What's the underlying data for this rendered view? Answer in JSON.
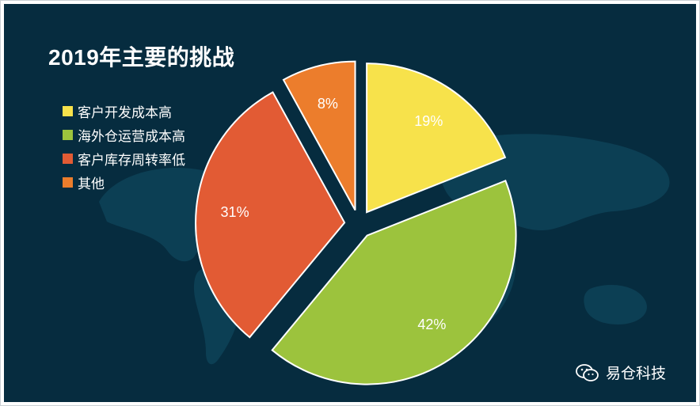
{
  "page": {
    "title": "2019年主要的挑战",
    "watermark": "易仓科技"
  },
  "colors": {
    "background": "#062c3f",
    "map": "#0e4358",
    "slice_border": "#ffffff"
  },
  "legend": {
    "items": [
      {
        "label": "客户开发成本高",
        "color": "#f7e24b"
      },
      {
        "label": "海外仓运营成本高",
        "color": "#9cc33d"
      },
      {
        "label": "客户库存周转率低",
        "color": "#e25b34"
      },
      {
        "label": "其他",
        "color": "#ec7d2c"
      }
    ]
  },
  "chart_data": {
    "type": "pie",
    "title": "2019年主要的挑战",
    "categories": [
      "客户开发成本高",
      "海外仓运营成本高",
      "客户库存周转率低",
      "其他"
    ],
    "values": [
      19,
      42,
      31,
      8
    ],
    "labels": [
      "19%",
      "42%",
      "31%",
      "8%"
    ],
    "colors": [
      "#f7e24b",
      "#9cc33d",
      "#e25b34",
      "#ec7d2c"
    ],
    "exploded": true,
    "legend_position": "left"
  },
  "icons": {
    "watermark_icon": "wechat-icon"
  }
}
